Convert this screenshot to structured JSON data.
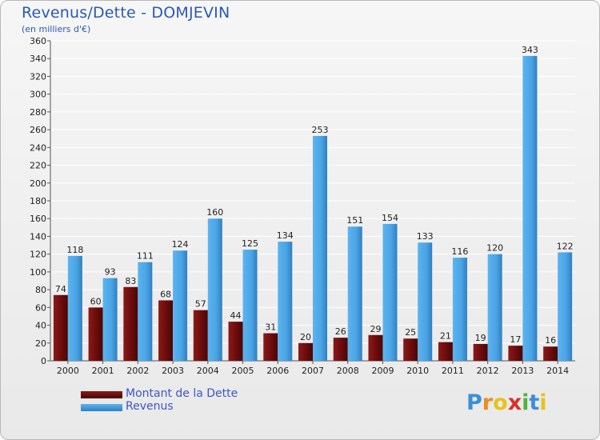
{
  "header": {
    "title": "Revenus/Dette - DOMJEVIN",
    "subtitle": "(en milliers d'€)"
  },
  "legend": {
    "dette_label": "Montant de la Dette",
    "revenus_label": "Revenus"
  },
  "logo": {
    "text": "Proxiti",
    "letters": [
      "P",
      "r",
      "o",
      "x",
      "i",
      "t",
      "i"
    ]
  },
  "colors": {
    "dette": "#6e0d0d",
    "revenus": "#4aa3e3",
    "grid": "#ffffff",
    "title": "#2a5ab0"
  },
  "chart_data": {
    "type": "bar",
    "title": "Revenus/Dette - DOMJEVIN",
    "ylabel": "(en milliers d'€)",
    "xlabel": "",
    "ylim": [
      0,
      360
    ],
    "yticks": [
      0,
      20,
      40,
      60,
      80,
      100,
      120,
      140,
      160,
      180,
      200,
      220,
      240,
      260,
      280,
      300,
      320,
      340,
      360
    ],
    "categories": [
      "2000",
      "2001",
      "2002",
      "2003",
      "2004",
      "2005",
      "2006",
      "2007",
      "2008",
      "2009",
      "2010",
      "2011",
      "2012",
      "2013",
      "2014"
    ],
    "series": [
      {
        "name": "Montant de la Dette",
        "values": [
          74,
          60,
          83,
          68,
          57,
          44,
          31,
          20,
          26,
          29,
          25,
          21,
          19,
          17,
          16
        ]
      },
      {
        "name": "Revenus",
        "values": [
          118,
          93,
          111,
          124,
          160,
          125,
          134,
          253,
          151,
          154,
          133,
          116,
          120,
          343,
          122
        ]
      }
    ],
    "grid": true,
    "legend_position": "bottom-left"
  }
}
